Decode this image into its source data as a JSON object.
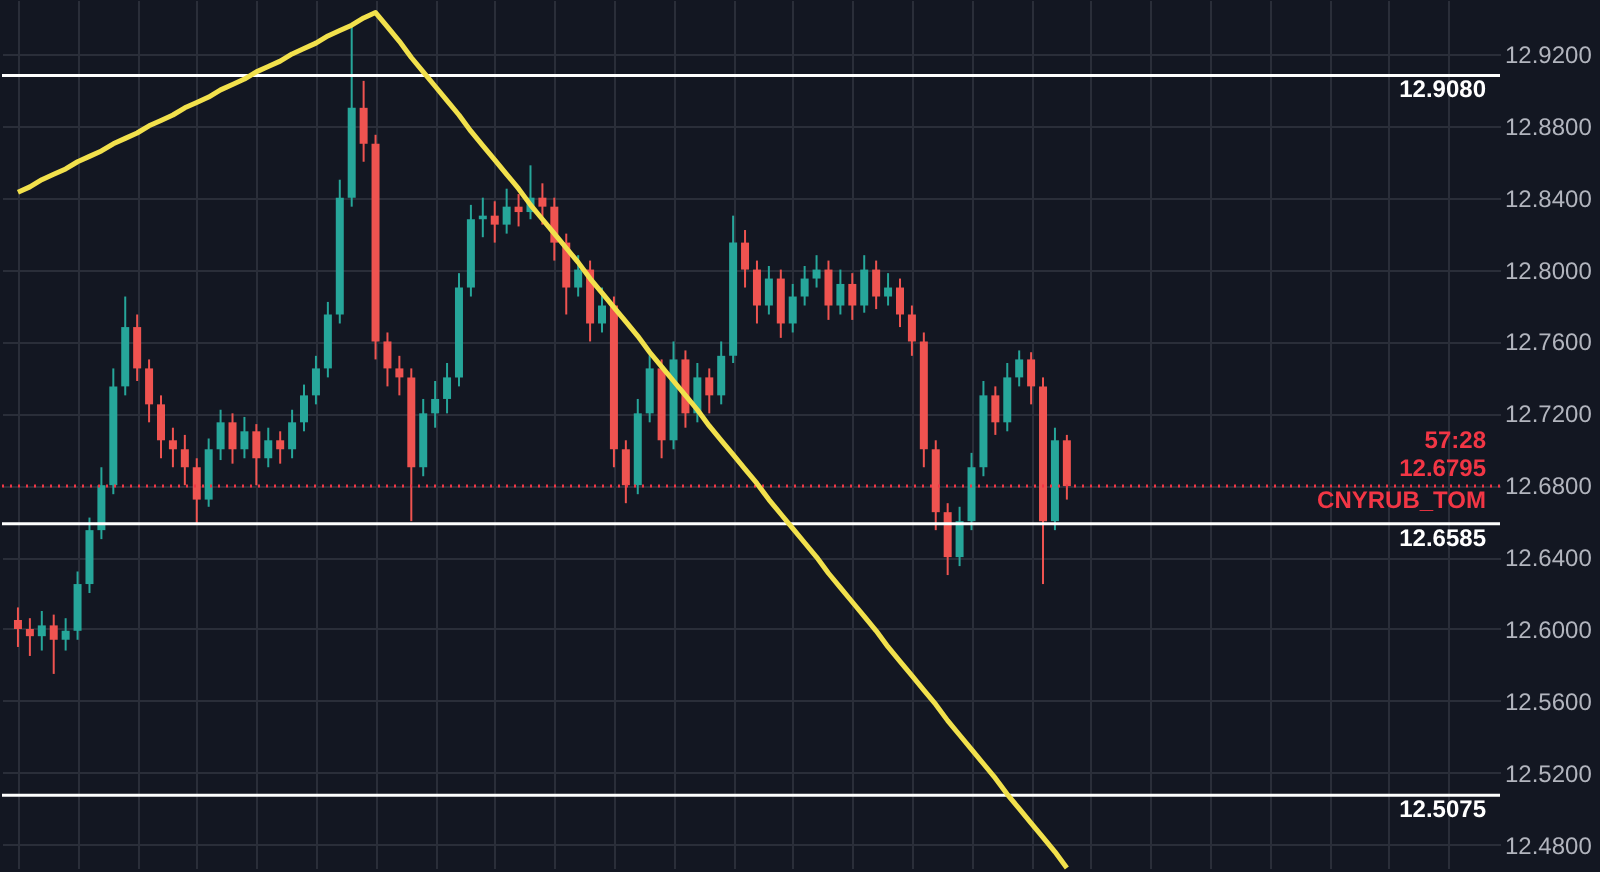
{
  "chart_data": {
    "type": "candlestick",
    "categories": [
      null,
      null,
      null,
      null,
      null,
      null,
      null,
      null,
      null,
      null,
      null,
      null,
      null,
      null,
      null,
      null,
      null,
      null,
      null,
      null,
      null,
      null,
      null,
      null,
      null,
      null,
      null,
      null,
      null,
      null,
      null,
      null,
      null,
      null,
      null,
      null,
      null,
      null,
      null,
      null,
      null,
      null,
      null,
      null,
      null,
      null,
      null,
      null,
      null,
      null,
      null,
      null,
      null,
      null,
      null,
      null,
      null,
      null,
      null,
      null,
      null,
      null,
      null,
      null,
      null,
      null,
      null,
      null,
      null,
      null,
      null,
      null,
      null,
      null,
      null,
      null,
      null,
      null,
      null,
      null,
      null,
      null,
      null,
      null,
      null,
      null,
      null,
      null,
      null,
      null,
      null,
      null,
      null,
      null,
      null,
      null,
      null,
      null,
      null,
      null,
      null,
      null,
      null,
      null,
      null,
      null,
      null,
      null,
      null,
      null,
      null,
      null,
      null,
      null,
      null,
      null,
      null,
      null,
      null,
      null,
      null,
      null,
      null,
      null
    ],
    "ohlc": [
      [
        12.605,
        12.612,
        12.59,
        12.6
      ],
      [
        12.6,
        12.606,
        12.585,
        12.596
      ],
      [
        12.596,
        12.61,
        12.588,
        12.602
      ],
      [
        12.602,
        12.608,
        12.575,
        12.594
      ],
      [
        12.594,
        12.606,
        12.588,
        12.599
      ],
      [
        12.599,
        12.632,
        12.594,
        12.625
      ],
      [
        12.625,
        12.662,
        12.62,
        12.655
      ],
      [
        12.655,
        12.69,
        12.65,
        12.68
      ],
      [
        12.68,
        12.745,
        12.675,
        12.735
      ],
      [
        12.735,
        12.785,
        12.73,
        12.768
      ],
      [
        12.768,
        12.775,
        12.738,
        12.745
      ],
      [
        12.745,
        12.75,
        12.715,
        12.725
      ],
      [
        12.725,
        12.73,
        12.695,
        12.705
      ],
      [
        12.705,
        12.712,
        12.69,
        12.7
      ],
      [
        12.7,
        12.708,
        12.68,
        12.69
      ],
      [
        12.69,
        12.695,
        12.658,
        12.672
      ],
      [
        12.672,
        12.706,
        12.668,
        12.7
      ],
      [
        12.7,
        12.722,
        12.694,
        12.715
      ],
      [
        12.715,
        12.72,
        12.692,
        12.7
      ],
      [
        12.7,
        12.718,
        12.695,
        12.71
      ],
      [
        12.71,
        12.714,
        12.68,
        12.695
      ],
      [
        12.695,
        12.712,
        12.69,
        12.705
      ],
      [
        12.705,
        12.71,
        12.692,
        12.7
      ],
      [
        12.7,
        12.722,
        12.695,
        12.715
      ],
      [
        12.715,
        12.736,
        12.71,
        12.73
      ],
      [
        12.73,
        12.752,
        12.725,
        12.745
      ],
      [
        12.745,
        12.782,
        12.74,
        12.775
      ],
      [
        12.775,
        12.85,
        12.77,
        12.84
      ],
      [
        12.84,
        12.937,
        12.835,
        12.89
      ],
      [
        12.89,
        12.905,
        12.86,
        12.87
      ],
      [
        12.87,
        12.875,
        12.75,
        12.76
      ],
      [
        12.76,
        12.765,
        12.735,
        12.745
      ],
      [
        12.745,
        12.752,
        12.73,
        12.74
      ],
      [
        12.74,
        12.745,
        12.66,
        12.69
      ],
      [
        12.69,
        12.728,
        12.685,
        12.72
      ],
      [
        12.72,
        12.738,
        12.712,
        12.728
      ],
      [
        12.728,
        12.748,
        12.72,
        12.74
      ],
      [
        12.74,
        12.798,
        12.735,
        12.79
      ],
      [
        12.79,
        12.836,
        12.785,
        12.828
      ],
      [
        12.828,
        12.84,
        12.818,
        12.83
      ],
      [
        12.83,
        12.838,
        12.815,
        12.825
      ],
      [
        12.825,
        12.845,
        12.82,
        12.835
      ],
      [
        12.835,
        12.842,
        12.824,
        12.832
      ],
      [
        12.832,
        12.858,
        12.828,
        12.84
      ],
      [
        12.84,
        12.848,
        12.825,
        12.835
      ],
      [
        12.835,
        12.84,
        12.805,
        12.815
      ],
      [
        12.815,
        12.82,
        12.775,
        12.79
      ],
      [
        12.79,
        12.808,
        12.785,
        12.8
      ],
      [
        12.8,
        12.805,
        12.76,
        12.77
      ],
      [
        12.77,
        12.79,
        12.765,
        12.78
      ],
      [
        12.78,
        12.785,
        12.69,
        12.7
      ],
      [
        12.7,
        12.705,
        12.67,
        12.68
      ],
      [
        12.68,
        12.728,
        12.675,
        12.72
      ],
      [
        12.72,
        12.755,
        12.715,
        12.745
      ],
      [
        12.745,
        12.75,
        12.695,
        12.705
      ],
      [
        12.705,
        12.76,
        12.7,
        12.75
      ],
      [
        12.75,
        12.755,
        12.712,
        12.72
      ],
      [
        12.72,
        12.748,
        12.715,
        12.74
      ],
      [
        12.74,
        12.745,
        12.72,
        12.73
      ],
      [
        12.73,
        12.76,
        12.725,
        12.752
      ],
      [
        12.752,
        12.83,
        12.748,
        12.815
      ],
      [
        12.815,
        12.822,
        12.79,
        12.8
      ],
      [
        12.8,
        12.805,
        12.77,
        12.78
      ],
      [
        12.78,
        12.802,
        12.775,
        12.795
      ],
      [
        12.795,
        12.8,
        12.762,
        12.77
      ],
      [
        12.77,
        12.792,
        12.765,
        12.785
      ],
      [
        12.785,
        12.802,
        12.78,
        12.795
      ],
      [
        12.795,
        12.808,
        12.79,
        12.8
      ],
      [
        12.8,
        12.805,
        12.772,
        12.78
      ],
      [
        12.78,
        12.8,
        12.775,
        12.792
      ],
      [
        12.792,
        12.798,
        12.772,
        12.78
      ],
      [
        12.78,
        12.808,
        12.776,
        12.8
      ],
      [
        12.8,
        12.805,
        12.778,
        12.785
      ],
      [
        12.785,
        12.798,
        12.78,
        12.79
      ],
      [
        12.79,
        12.795,
        12.768,
        12.775
      ],
      [
        12.775,
        12.78,
        12.752,
        12.76
      ],
      [
        12.76,
        12.765,
        12.69,
        12.7
      ],
      [
        12.7,
        12.705,
        12.655,
        12.665
      ],
      [
        12.665,
        12.67,
        12.63,
        12.64
      ],
      [
        12.64,
        12.668,
        12.635,
        12.66
      ],
      [
        12.66,
        12.698,
        12.655,
        12.69
      ],
      [
        12.69,
        12.738,
        12.685,
        12.73
      ],
      [
        12.73,
        12.735,
        12.708,
        12.715
      ],
      [
        12.715,
        12.748,
        12.71,
        12.74
      ],
      [
        12.74,
        12.755,
        12.735,
        12.75
      ],
      [
        12.75,
        12.754,
        12.725,
        12.735
      ],
      [
        12.735,
        12.74,
        12.625,
        12.66
      ],
      [
        12.66,
        12.712,
        12.655,
        12.705
      ],
      [
        12.705,
        12.708,
        12.672,
        12.6795
      ],
      null,
      null,
      null,
      null,
      null,
      null,
      null,
      null,
      null,
      null,
      null,
      null,
      null,
      null,
      null,
      null,
      null,
      null,
      null,
      null,
      null,
      null,
      null,
      null,
      null,
      null,
      null,
      null,
      null,
      null,
      null,
      null,
      null,
      null,
      null
    ],
    "series": [
      {
        "type": "line",
        "color": "#f2e14c",
        "values": [
          12.843,
          12.846,
          12.85,
          12.853,
          12.856,
          12.86,
          12.863,
          12.866,
          12.87,
          12.873,
          12.876,
          12.88,
          12.883,
          12.886,
          12.89,
          12.893,
          12.896,
          12.9,
          12.903,
          12.906,
          12.91,
          12.913,
          12.916,
          12.92,
          12.923,
          12.926,
          12.93,
          12.933,
          12.936,
          12.94,
          12.943,
          12.935,
          12.927,
          12.918,
          12.91,
          12.902,
          12.894,
          12.886,
          12.877,
          12.869,
          12.861,
          12.853,
          12.845,
          12.836,
          12.828,
          12.82,
          12.812,
          12.804,
          12.795,
          12.787,
          12.779,
          12.771,
          12.763,
          12.754,
          12.746,
          12.738,
          12.73,
          12.722,
          12.713,
          12.705,
          12.697,
          12.689,
          12.681,
          12.672,
          12.664,
          12.656,
          12.648,
          12.64,
          12.631,
          12.623,
          12.615,
          12.607,
          12.599,
          12.59,
          12.582,
          12.574,
          12.566,
          12.558,
          12.549,
          12.541,
          12.533,
          12.525,
          12.517,
          12.508,
          12.5,
          12.492,
          12.484,
          12.476,
          12.467,
          null,
          null,
          null,
          null,
          null,
          null,
          null,
          null,
          null,
          null,
          null,
          null,
          null,
          null,
          null,
          null,
          null,
          null,
          null,
          null,
          null,
          null,
          null,
          null,
          null,
          null,
          null,
          null,
          null,
          null,
          null,
          null,
          null,
          null,
          null
        ]
      }
    ],
    "ylim": [
      12.467,
      12.95
    ],
    "yticks": [
      {
        "value": 12.48,
        "label": "12.4800"
      },
      {
        "value": 12.52,
        "label": "12.5200"
      },
      {
        "value": 12.56,
        "label": "12.5600"
      },
      {
        "value": 12.6,
        "label": "12.6000"
      },
      {
        "value": 12.64,
        "label": "12.6400"
      },
      {
        "value": 12.68,
        "label": "12.6800"
      },
      {
        "value": 12.72,
        "label": "12.7200"
      },
      {
        "value": 12.76,
        "label": "12.7600"
      },
      {
        "value": 12.8,
        "label": "12.8000"
      },
      {
        "value": 12.84,
        "label": "12.8400"
      },
      {
        "value": 12.88,
        "label": "12.8800"
      },
      {
        "value": 12.92,
        "label": "12.9200"
      }
    ],
    "ref_lines": [
      {
        "axis": "y",
        "value": 12.908,
        "label": "12.9080",
        "color": "#ffffff",
        "line_style": "solid"
      },
      {
        "axis": "y",
        "value": 12.6585,
        "label": "12.6585",
        "color": "#ffffff",
        "line_style": "solid"
      },
      {
        "axis": "y",
        "value": 12.5075,
        "label": "12.5075",
        "color": "#ffffff",
        "line_style": "solid"
      },
      {
        "axis": "y",
        "value": 12.6795,
        "label": "CNYRUB_TOM",
        "color": "#f23645",
        "line_style": "dotted"
      }
    ],
    "annotations": [
      {
        "text": "12.6795",
        "y": 12.6795
      },
      {
        "text": "57:28",
        "y": 12.6795
      }
    ],
    "grid": true,
    "tick_labels": "y"
  }
}
